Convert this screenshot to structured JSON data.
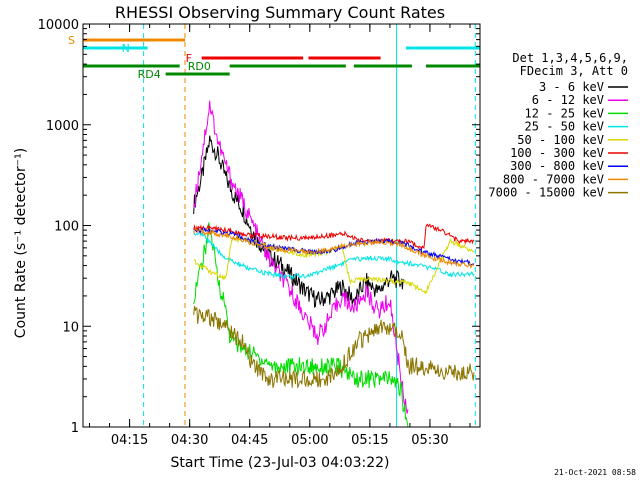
{
  "chart_data": {
    "type": "line",
    "title": "RHESSI Observing Summary Count Rates",
    "xlabel": "Start Time (23-Jul-03 04:03:22)",
    "ylabel": "Count Rate (s⁻¹ detector⁻¹)",
    "timestamp": "21-Oct-2021 08:58",
    "yscale": "log",
    "xlim": [
      "04:03:22",
      "05:42:30"
    ],
    "ylim": [
      1,
      10000
    ],
    "x_ticks": [
      "04:15",
      "04:30",
      "04:45",
      "05:00",
      "05:15",
      "05:30"
    ],
    "y_ticks": [
      {
        "value": 1,
        "label": "1"
      },
      {
        "value": 10,
        "label": "10"
      },
      {
        "value": 100,
        "label": "100"
      },
      {
        "value": 1000,
        "label": "1000"
      },
      {
        "value": 10000,
        "label": "10000"
      }
    ],
    "legend": {
      "position": "right",
      "header": [
        "Det 1,3,4,5,6,9,",
        "FDecim 3, Att 0"
      ],
      "entries": [
        {
          "name": "3 - 6 keV",
          "color": "#000000"
        },
        {
          "name": "6 - 12 keV",
          "color": "#ee00ee"
        },
        {
          "name": "12 - 25 keV",
          "color": "#00dd00"
        },
        {
          "name": "25 - 50 keV",
          "color": "#00e5e5"
        },
        {
          "name": "50 - 100 keV",
          "color": "#d8d800"
        },
        {
          "name": "100 - 300 keV",
          "color": "#ee0000"
        },
        {
          "name": "300 - 800 keV",
          "color": "#0000ee"
        },
        {
          "name": "800 - 7000 keV",
          "color": "#ee8800"
        },
        {
          "name": "7000 - 15000 keV",
          "color": "#8b7500"
        }
      ]
    },
    "flags": [
      {
        "label": "S",
        "color": "#ee8800",
        "segments": [
          [
            "04:03:22",
            "04:28:50"
          ]
        ]
      },
      {
        "label": "N",
        "color": "#00e5e5",
        "segments": [
          [
            "04:03:22",
            "04:19:30"
          ],
          [
            "05:24:00",
            "05:42:30"
          ]
        ]
      },
      {
        "label": "F",
        "color": "#ee0000",
        "segments": [
          [
            "04:33:00",
            "04:58:20"
          ],
          [
            "04:59:40",
            "05:17:40"
          ]
        ]
      },
      {
        "label": "RD0",
        "color": "#008800",
        "segments": [
          [
            "04:03:22",
            "04:27:30"
          ],
          [
            "04:40:00",
            "05:09:00"
          ],
          [
            "05:11:00",
            "05:25:30"
          ],
          [
            "05:29:00",
            "05:42:30"
          ]
        ]
      },
      {
        "label": "RD4",
        "color": "#008800",
        "segments": [
          [
            "04:24:00",
            "04:40:00"
          ]
        ]
      }
    ],
    "vertical_markers": [
      {
        "time": "04:18:30",
        "color": "#00e5e5",
        "style": "dashed"
      },
      {
        "time": "04:28:50",
        "color": "#ee8800",
        "style": "dashed"
      },
      {
        "time": "05:21:40",
        "color": "#00e5e5",
        "style": "solid"
      },
      {
        "time": "05:41:20",
        "color": "#00e5e5",
        "style": "dashed"
      }
    ],
    "series": [
      {
        "name": "3 - 6 keV",
        "color": "#000000",
        "x": [
          "04:31:00",
          "04:33:00",
          "04:35:00",
          "04:37:00",
          "04:39:00",
          "04:41:00",
          "04:43:00",
          "04:45:00",
          "04:47:00",
          "04:50:00",
          "04:53:00",
          "04:56:00",
          "04:59:00",
          "05:02:00",
          "05:05:00",
          "05:08:00",
          "05:11:00",
          "05:14:00",
          "05:17:00",
          "05:20:00",
          "05:23:30"
        ],
        "values": [
          160,
          300,
          700,
          500,
          300,
          200,
          150,
          100,
          70,
          50,
          40,
          30,
          22,
          18,
          20,
          25,
          18,
          28,
          22,
          30,
          28
        ]
      },
      {
        "name": "6 - 12 keV",
        "color": "#ee00ee",
        "x": [
          "04:31:00",
          "04:33:00",
          "04:35:00",
          "04:37:00",
          "04:39:00",
          "04:41:00",
          "04:43:00",
          "04:45:00",
          "04:47:00",
          "04:50:00",
          "04:53:00",
          "04:56:00",
          "04:59:00",
          "05:02:00",
          "05:05:00",
          "05:08:00",
          "05:11:00",
          "05:14:00",
          "05:17:00",
          "05:20:00",
          "05:22:00",
          "05:23:30",
          "05:24:30"
        ],
        "values": [
          150,
          500,
          1600,
          700,
          400,
          250,
          180,
          120,
          80,
          45,
          30,
          20,
          12,
          8,
          12,
          20,
          15,
          22,
          14,
          18,
          5,
          2,
          1.5
        ]
      },
      {
        "name": "12 - 25 keV",
        "color": "#00dd00",
        "x": [
          "04:31:00",
          "04:33:00",
          "04:35:00",
          "04:37:00",
          "04:39:00",
          "04:40:00",
          "04:43:00",
          "04:47:00",
          "04:51:00",
          "04:55:00",
          "04:59:00",
          "05:03:00",
          "05:07:00",
          "05:09:00",
          "05:12:00",
          "05:16:00",
          "05:20:00",
          "05:22:30",
          "05:24:30"
        ],
        "values": [
          20,
          40,
          100,
          30,
          15,
          8,
          6,
          5,
          4,
          4,
          4,
          4,
          4,
          3.5,
          3,
          3,
          3,
          2.5,
          1
        ]
      },
      {
        "name": "25 - 50 keV",
        "color": "#00e5e5",
        "x": [
          "04:31:00",
          "04:33:00",
          "04:35:00",
          "04:37:00",
          "04:40:00",
          "04:45:00",
          "04:50:00",
          "04:55:00",
          "05:00:00",
          "05:05:00",
          "05:10:00",
          "05:15:00",
          "05:20:00",
          "05:25:00",
          "05:30:00",
          "05:35:00",
          "05:41:00"
        ],
        "values": [
          85,
          82,
          70,
          55,
          45,
          37,
          33,
          31,
          32,
          38,
          45,
          48,
          46,
          42,
          38,
          33,
          33
        ]
      },
      {
        "name": "50 - 100 keV",
        "color": "#d8d800",
        "x": [
          "04:31:00",
          "04:35:00",
          "04:39:00",
          "04:40:30",
          "04:45:00",
          "04:50:00",
          "04:55:00",
          "05:00:00",
          "05:05:00",
          "05:08:00",
          "05:10:00",
          "05:15:00",
          "05:20:00",
          "05:24:30",
          "05:29:00",
          "05:35:00",
          "05:41:00"
        ],
        "values": [
          45,
          35,
          30,
          75,
          70,
          60,
          55,
          50,
          55,
          62,
          28,
          30,
          28,
          27,
          22,
          70,
          55
        ]
      },
      {
        "name": "100 - 300 keV",
        "color": "#ee0000",
        "x": [
          "04:31:00",
          "04:35:00",
          "04:39:00",
          "04:42:00",
          "04:45:00",
          "04:50:00",
          "04:55:00",
          "05:00:00",
          "05:05:00",
          "05:09:00",
          "05:12:00",
          "05:16:00",
          "05:20:00",
          "05:24:00",
          "05:28:30",
          "05:29:00",
          "05:33:00",
          "05:37:00",
          "05:41:00"
        ],
        "values": [
          95,
          95,
          90,
          85,
          80,
          78,
          75,
          75,
          80,
          82,
          72,
          70,
          70,
          70,
          60,
          100,
          90,
          70,
          70
        ]
      },
      {
        "name": "300 - 800 keV",
        "color": "#0000ee",
        "x": [
          "04:31:00",
          "04:35:00",
          "04:39:00",
          "04:42:00",
          "04:45:00",
          "04:50:00",
          "04:55:00",
          "05:00:00",
          "05:05:00",
          "05:10:00",
          "05:15:00",
          "05:20:00",
          "05:24:00",
          "05:28:00",
          "05:32:00",
          "05:36:00",
          "05:41:00"
        ],
        "values": [
          90,
          88,
          85,
          80,
          70,
          62,
          58,
          55,
          55,
          65,
          70,
          70,
          65,
          55,
          50,
          45,
          42
        ]
      },
      {
        "name": "800 - 7000 keV",
        "color": "#ee8800",
        "x": [
          "04:31:00",
          "04:35:00",
          "04:39:00",
          "04:42:00",
          "04:45:00",
          "04:50:00",
          "04:55:00",
          "05:00:00",
          "05:05:00",
          "05:10:00",
          "05:15:00",
          "05:20:00",
          "05:24:00",
          "05:28:00",
          "05:32:00",
          "05:36:00",
          "05:41:00"
        ],
        "values": [
          88,
          85,
          80,
          75,
          68,
          60,
          57,
          55,
          57,
          65,
          68,
          68,
          62,
          52,
          46,
          42,
          40
        ]
      },
      {
        "name": "7000 - 15000 keV",
        "color": "#8b7500",
        "x": [
          "04:31:00",
          "04:35:00",
          "04:39:00",
          "04:43:00",
          "04:46:00",
          "04:50:00",
          "04:55:00",
          "05:00:00",
          "05:04:00",
          "05:08:00",
          "05:12:00",
          "05:16:00",
          "05:20:00",
          "05:23:00",
          "05:24:30",
          "05:28:00",
          "05:32:00",
          "05:36:00",
          "05:41:00"
        ],
        "values": [
          13,
          12,
          10,
          7,
          4,
          3,
          3,
          3,
          3,
          4,
          7,
          9,
          10,
          9,
          4,
          4,
          3.5,
          3.5,
          3.5
        ]
      }
    ]
  }
}
